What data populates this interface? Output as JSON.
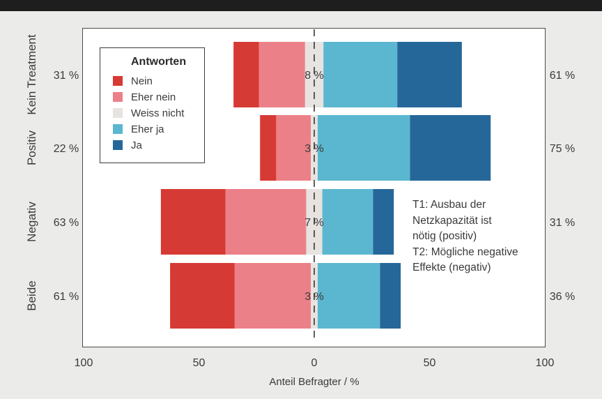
{
  "chart_data": {
    "type": "bar",
    "orientation": "horizontal",
    "stacked": "diverging",
    "xlabel": "Anteil Befragter / %",
    "x_ticks": [
      "100",
      "50",
      "0",
      "50",
      "100"
    ],
    "xlim": [
      -100,
      100
    ],
    "categories": [
      "Kein Treatment",
      "Positiv",
      "Negativ",
      "Beide"
    ],
    "left_totals": [
      "31 %",
      "22 %",
      "63 %",
      "61 %"
    ],
    "right_totals": [
      "61 %",
      "75 %",
      "31 %",
      "36 %"
    ],
    "neutral_labels": [
      "8 %",
      "3 %",
      "7 %",
      "3 %"
    ],
    "series": [
      {
        "name": "Nein",
        "values": [
          11,
          7,
          28,
          28
        ]
      },
      {
        "name": "Eher nein",
        "values": [
          20,
          15,
          35,
          33
        ]
      },
      {
        "name": "Weiss nicht",
        "values": [
          8,
          3,
          7,
          3
        ]
      },
      {
        "name": "Eher ja",
        "values": [
          32,
          40,
          22,
          27
        ]
      },
      {
        "name": "Ja",
        "values": [
          28,
          35,
          9,
          9
        ]
      }
    ],
    "colors": [
      "#d63a34",
      "#ec8088",
      "#e6e3e0",
      "#5bb7cf",
      "#26679a"
    ],
    "legend": {
      "title": "Antworten",
      "position": "top-left"
    },
    "grid": false
  },
  "annotation": {
    "lines": [
      "T1: Ausbau der",
      "Netzkapazität ist",
      "nötig (positiv)",
      "T2: Mögliche negative",
      "Effekte (negativ)"
    ]
  }
}
